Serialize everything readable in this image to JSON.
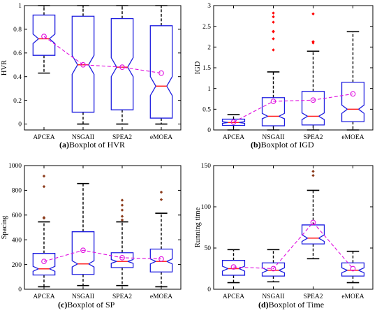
{
  "chart_data": [
    {
      "id": "a",
      "type": "boxplot",
      "ylabel": "HVR",
      "ylim": [
        -0.05,
        1.0
      ],
      "yticks": [
        0,
        0.2,
        0.4,
        0.6,
        0.8,
        1
      ],
      "ytick_labels": [
        "0",
        "0.2",
        "0.4",
        "0.6",
        "0.8",
        "1"
      ],
      "categories": [
        "APCEA",
        "NSGAII",
        "SPEA2",
        "eMOEA"
      ],
      "caption_letter": "(a)",
      "caption_text": "Boxplot of HVR",
      "boxes": [
        {
          "min": 0.43,
          "q1": 0.58,
          "median": 0.72,
          "q3": 0.92,
          "max": 1.0,
          "notch": [
            0.68,
            0.76
          ],
          "mean": 0.74,
          "outliers": []
        },
        {
          "min": 0.0,
          "q1": 0.1,
          "median": 0.5,
          "q3": 0.91,
          "max": 1.0,
          "notch": [
            0.42,
            0.58
          ],
          "mean": 0.5,
          "outliers": []
        },
        {
          "min": 0.0,
          "q1": 0.12,
          "median": 0.48,
          "q3": 0.89,
          "max": 1.0,
          "notch": [
            0.4,
            0.56
          ],
          "mean": 0.48,
          "outliers": []
        },
        {
          "min": 0.0,
          "q1": 0.05,
          "median": 0.32,
          "q3": 0.83,
          "max": 1.0,
          "notch": [
            0.24,
            0.4
          ],
          "mean": 0.43,
          "outliers": []
        }
      ],
      "outlier_color": "#ff0000"
    },
    {
      "id": "b",
      "type": "boxplot",
      "ylabel": "IGD",
      "ylim": [
        0,
        3
      ],
      "yticks": [
        0,
        0.5,
        1,
        1.5,
        2,
        2.5,
        3
      ],
      "ytick_labels": [
        "0",
        "0.5",
        "1",
        "1.5",
        "2",
        "2.5",
        "3"
      ],
      "categories": [
        "APCEA",
        "NSGAII",
        "SPEA2",
        "eMOEA"
      ],
      "caption_letter": "(b)",
      "caption_text": "Boxplot of IGD",
      "boxes": [
        {
          "min": 0.0,
          "q1": 0.11,
          "median": 0.18,
          "q3": 0.26,
          "max": 0.37,
          "notch": [
            0.16,
            0.2
          ],
          "mean": 0.19,
          "outliers": []
        },
        {
          "min": 0.0,
          "q1": 0.1,
          "median": 0.33,
          "q3": 0.78,
          "max": 1.4,
          "notch": [
            0.27,
            0.4
          ],
          "mean": 0.69,
          "outliers": [
            1.93,
            2.2,
            2.37,
            2.38,
            2.6,
            2.73,
            2.82
          ]
        },
        {
          "min": 0.0,
          "q1": 0.12,
          "median": 0.33,
          "q3": 0.93,
          "max": 1.9,
          "notch": [
            0.25,
            0.41
          ],
          "mean": 0.72,
          "outliers": [
            2.1,
            2.13,
            2.8
          ]
        },
        {
          "min": 0.0,
          "q1": 0.2,
          "median": 0.5,
          "q3": 1.15,
          "max": 2.37,
          "notch": [
            0.4,
            0.6
          ],
          "mean": 0.87,
          "outliers": []
        }
      ],
      "outlier_color": "#ff0000"
    },
    {
      "id": "c",
      "type": "boxplot",
      "ylabel": "Spacing",
      "ylim": [
        0,
        1000
      ],
      "yticks": [
        0,
        200,
        400,
        600,
        800,
        1000
      ],
      "ytick_labels": [
        "0",
        "200",
        "400",
        "600",
        "800",
        "1000"
      ],
      "categories": [
        "APCEA",
        "NSGAII",
        "SPEA2",
        "eMOEA"
      ],
      "caption_letter": "(c)",
      "caption_text": "Boxplot of SP",
      "boxes": [
        {
          "min": 20,
          "q1": 115,
          "median": 165,
          "q3": 290,
          "max": 545,
          "notch": [
            145,
            185
          ],
          "mean": 225,
          "outliers": [
            575,
            580,
            830,
            915
          ]
        },
        {
          "min": 30,
          "q1": 120,
          "median": 205,
          "q3": 465,
          "max": 855,
          "notch": [
            180,
            230
          ],
          "mean": 315,
          "outliers": []
        },
        {
          "min": 30,
          "q1": 175,
          "median": 225,
          "q3": 295,
          "max": 545,
          "notch": [
            210,
            240
          ],
          "mean": 255,
          "outliers": [
            560,
            590,
            640,
            680,
            720
          ]
        },
        {
          "min": 20,
          "q1": 140,
          "median": 225,
          "q3": 325,
          "max": 615,
          "notch": [
            205,
            245
          ],
          "mean": 245,
          "outliers": [
            725,
            785
          ]
        }
      ],
      "outlier_color": "#8b3a1a"
    },
    {
      "id": "d",
      "type": "boxplot",
      "ylabel": "Running time",
      "ylim": [
        0,
        150
      ],
      "yticks": [
        0,
        50,
        100,
        150
      ],
      "ytick_labels": [
        "0",
        "50",
        "100",
        "150"
      ],
      "categories": [
        "APCEA",
        "NSGAII",
        "SPEA2",
        "eMOEA"
      ],
      "caption_letter": "(d)",
      "caption_text": "Boxplot of Time",
      "boxes": [
        {
          "min": 8,
          "q1": 17,
          "median": 25,
          "q3": 35,
          "max": 48,
          "notch": [
            22,
            28
          ],
          "mean": 27,
          "outliers": []
        },
        {
          "min": 9,
          "q1": 16,
          "median": 23,
          "q3": 32,
          "max": 48,
          "notch": [
            20,
            26
          ],
          "mean": 25,
          "outliers": []
        },
        {
          "min": 37,
          "q1": 55,
          "median": 62,
          "q3": 78,
          "max": 120,
          "notch": [
            58,
            66
          ],
          "mean": 81,
          "outliers": [
            138,
            143
          ]
        },
        {
          "min": 8,
          "q1": 16,
          "median": 23,
          "q3": 32,
          "max": 46,
          "notch": [
            20,
            26
          ],
          "mean": 25,
          "outliers": []
        }
      ],
      "outlier_color": "#8b3a1a"
    }
  ]
}
